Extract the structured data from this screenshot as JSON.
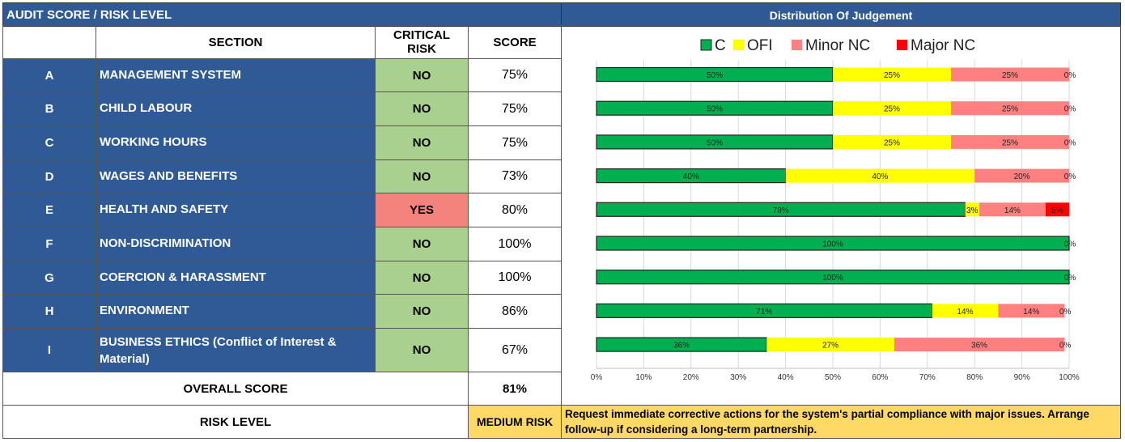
{
  "left_title": "AUDIT SCORE / RISK LEVEL",
  "right_title": "Distribution Of Judgement",
  "columns": {
    "section": "SECTION",
    "critical": "CRITICAL RISK",
    "score": "SCORE"
  },
  "rows": [
    {
      "letter": "A",
      "section": "MANAGEMENT SYSTEM",
      "critical": "NO",
      "score": "75%"
    },
    {
      "letter": "B",
      "section": "CHILD LABOUR",
      "critical": "NO",
      "score": "75%"
    },
    {
      "letter": "C",
      "section": "WORKING HOURS",
      "critical": "NO",
      "score": "75%"
    },
    {
      "letter": "D",
      "section": "WAGES AND BENEFITS",
      "critical": "NO",
      "score": "73%"
    },
    {
      "letter": "E",
      "section": "HEALTH AND SAFETY",
      "critical": "YES",
      "score": "80%"
    },
    {
      "letter": "F",
      "section": "NON-DISCRIMINATION",
      "critical": "NO",
      "score": "100%"
    },
    {
      "letter": "G",
      "section": "COERCION & HARASSMENT",
      "critical": "NO",
      "score": "100%"
    },
    {
      "letter": "H",
      "section": "ENVIRONMENT",
      "critical": "NO",
      "score": "86%"
    },
    {
      "letter": "I",
      "section": "BUSINESS ETHICS (Conflict of Interest & Material)",
      "critical": "NO",
      "score": "67%"
    }
  ],
  "overall": {
    "label": "OVERALL SCORE",
    "value": "81%"
  },
  "risk": {
    "label": "RISK LEVEL",
    "value": "MEDIUM RISK",
    "message": "Request immediate corrective actions for the system's partial compliance with major issues. Arrange follow-up if considering a long-term partnership."
  },
  "colors": {
    "header": "#2F5A96",
    "no": "#A9D08E",
    "yes": "#F4837D",
    "risk": "#FFD966"
  },
  "chart_data": {
    "type": "bar",
    "orientation": "horizontal",
    "stacked": true,
    "categories": [
      "A",
      "B",
      "C",
      "D",
      "E",
      "F",
      "G",
      "H",
      "I"
    ],
    "series": [
      {
        "name": "C",
        "color": "#00B050",
        "values": [
          50,
          50,
          50,
          40,
          78,
          100,
          100,
          71,
          36
        ]
      },
      {
        "name": "OFI",
        "color": "#FFFF00",
        "values": [
          25,
          25,
          25,
          40,
          3,
          0,
          0,
          14,
          27
        ]
      },
      {
        "name": "Minor NC",
        "color": "#FF8080",
        "values": [
          25,
          25,
          25,
          20,
          14,
          0,
          0,
          14,
          36
        ]
      },
      {
        "name": "Major NC",
        "color": "#FF0000",
        "values": [
          0,
          0,
          0,
          0,
          5,
          0,
          0,
          0,
          0
        ]
      }
    ],
    "xlim": [
      0,
      100
    ],
    "xticks": [
      "0%",
      "10%",
      "20%",
      "30%",
      "40%",
      "50%",
      "60%",
      "70%",
      "80%",
      "90%",
      "100%"
    ],
    "grid": true,
    "legend": "top"
  }
}
